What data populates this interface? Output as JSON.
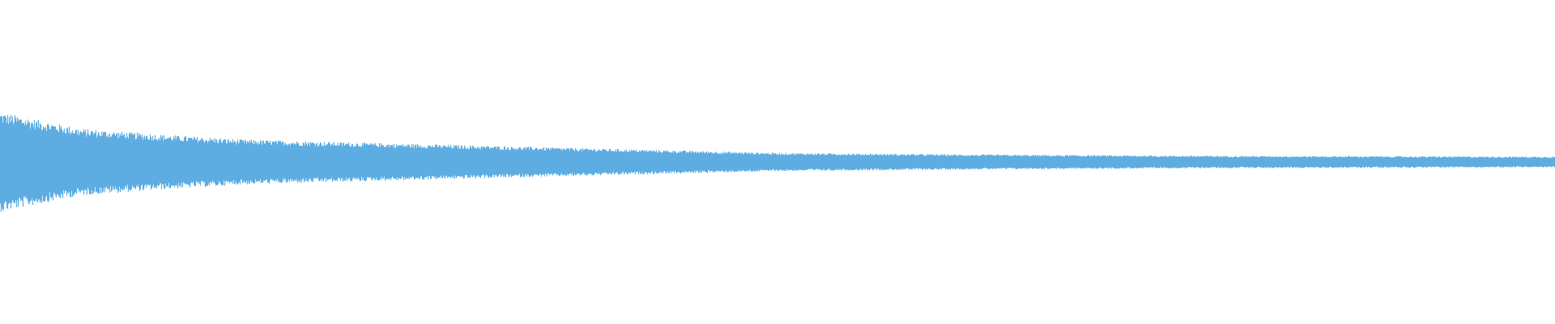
{
  "chart_data": {
    "type": "area",
    "title": "",
    "xlabel": "",
    "ylabel": "",
    "grid": false,
    "legend": "none",
    "ylim": [
      -1,
      1
    ],
    "xlim": [
      0,
      1
    ],
    "envelope": {
      "x": [
        0,
        0.052,
        0.104,
        0.156,
        0.26,
        0.365,
        0.5,
        0.625,
        0.78,
        1.0
      ],
      "amplitude": [
        0.3,
        0.2,
        0.165,
        0.135,
        0.11,
        0.085,
        0.055,
        0.045,
        0.0375,
        0.0325
      ]
    },
    "color": "#5dade2",
    "background": "#ffffff"
  }
}
